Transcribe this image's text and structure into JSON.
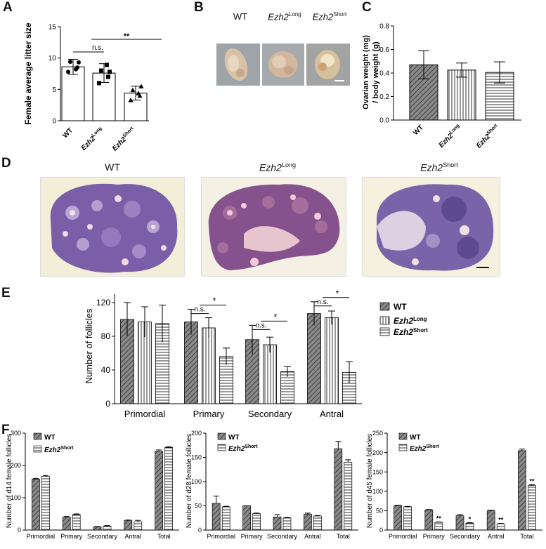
{
  "panels": {
    "A": "A",
    "B": "B",
    "C": "C",
    "D": "D",
    "E": "E",
    "F": "F"
  },
  "groups": {
    "wt": "WT",
    "ezh2": "Ezh2",
    "long": "Long",
    "short": "Short"
  },
  "panel_a": {
    "ylabel": "Female average litter size",
    "sig_ns": "n.s.",
    "sig_double": "**"
  },
  "panel_c": {
    "ylabel_line1": "Ovarian weight (mg)",
    "ylabel_line2": "/ body weight (g)"
  },
  "panel_e": {
    "ylabel": "Number of  follicles",
    "legend_wt": "WT",
    "sig_ns": "n.s.",
    "sig_single": "*"
  },
  "panel_f": {
    "ylabel_d14": "Number of  d14 female follicles",
    "ylabel_d28": "Number of  d28 female follicles",
    "ylabel_d45": "Number of  d45 female follicles",
    "legend_wt": "WT",
    "sig_single": "*",
    "sig_double": "**"
  },
  "colors": {
    "bar_dark": "#7d7d7d",
    "bar_light": "#ffffff",
    "histo_purple": "#6b4d96",
    "histo_pink": "#d8a8bf",
    "histo_bg": "#f2ecd6"
  },
  "chart_data": [
    {
      "id": "A",
      "type": "bar",
      "categories": [
        "WT",
        "Ezh2Long",
        "Ezh2Short"
      ],
      "values": [
        8.6,
        7.6,
        4.4
      ],
      "errors": [
        1.2,
        1.5,
        1.1
      ],
      "points": [
        [
          7.8,
          8.5,
          9.4,
          8.2,
          9.3
        ],
        [
          6.0,
          7.0,
          8.0,
          8.9,
          7.8
        ],
        [
          3.3,
          4.0,
          4.9,
          4.4,
          5.5
        ]
      ],
      "ylim": [
        0,
        15
      ],
      "yticks": [
        0,
        5,
        10,
        15
      ],
      "grid": false
    },
    {
      "id": "C",
      "type": "bar",
      "categories": [
        "WT",
        "Ezh2Long",
        "Ezh2Short"
      ],
      "values": [
        0.47,
        0.425,
        0.405
      ],
      "errors": [
        0.12,
        0.06,
        0.09
      ],
      "ylim": [
        0,
        0.8
      ],
      "yticks": [
        "0.0",
        "0.2",
        "0.4",
        "0.6",
        "0.8"
      ],
      "grid": false
    },
    {
      "id": "E",
      "type": "bar",
      "categories": [
        "Primordial",
        "Primary",
        "Secondary",
        "Antral"
      ],
      "series": [
        {
          "name": "WT",
          "values": [
            100,
            97,
            76,
            107
          ],
          "errors": [
            20,
            15,
            17,
            14
          ]
        },
        {
          "name": "Ezh2Long",
          "values": [
            97,
            90,
            70,
            102
          ],
          "errors": [
            18,
            12,
            9,
            8
          ]
        },
        {
          "name": "Ezh2Short",
          "values": [
            95,
            56,
            38,
            37
          ],
          "errors": [
            22,
            10,
            6,
            13
          ]
        }
      ],
      "ylim": [
        0,
        130
      ],
      "yticks": [
        0,
        40,
        80,
        120
      ],
      "legend": "right",
      "grid": false
    },
    {
      "id": "F-d14",
      "type": "bar",
      "categories": [
        "Primordial",
        "Primary",
        "Secondary",
        "Antral",
        "Total"
      ],
      "series": [
        {
          "name": "WT",
          "values": [
            158,
            40,
            10,
            30,
            244
          ],
          "errors": [
            2,
            2,
            1,
            1,
            4
          ]
        },
        {
          "name": "Ezh2Short",
          "values": [
            166,
            48,
            12,
            26,
            256
          ],
          "errors": [
            3,
            2,
            2,
            4,
            2
          ]
        }
      ],
      "ylim": [
        0,
        300
      ],
      "yticks": [
        0,
        100,
        200,
        300
      ],
      "legend": "top-left"
    },
    {
      "id": "F-d28",
      "type": "bar",
      "categories": [
        "Primordial",
        "Primary",
        "Secondary",
        "Antral",
        "Total"
      ],
      "series": [
        {
          "name": "WT",
          "values": [
            55,
            50,
            27,
            33,
            168
          ],
          "errors": [
            15,
            0,
            5,
            2,
            15
          ]
        },
        {
          "name": "Ezh2Short",
          "values": [
            48,
            34,
            25,
            29,
            140
          ],
          "errors": [
            1,
            1,
            1,
            1,
            5
          ]
        }
      ],
      "ylim": [
        0,
        200
      ],
      "yticks": [
        0,
        50,
        100,
        150,
        200
      ],
      "legend": "top-left"
    },
    {
      "id": "F-d45",
      "type": "bar",
      "categories": [
        "Primordial",
        "Primary",
        "Secondary",
        "Antral",
        "Total"
      ],
      "series": [
        {
          "name": "WT",
          "values": [
            63,
            52,
            37,
            50,
            205
          ],
          "errors": [
            1,
            1,
            3,
            1,
            4
          ]
        },
        {
          "name": "Ezh2Short",
          "values": [
            60,
            20,
            18,
            16,
            115
          ],
          "errors": [
            1,
            1,
            1,
            1,
            2
          ]
        }
      ],
      "ylim": [
        0,
        250
      ],
      "yticks": [
        0,
        50,
        100,
        150,
        200,
        250
      ],
      "legend": "top-left"
    }
  ]
}
